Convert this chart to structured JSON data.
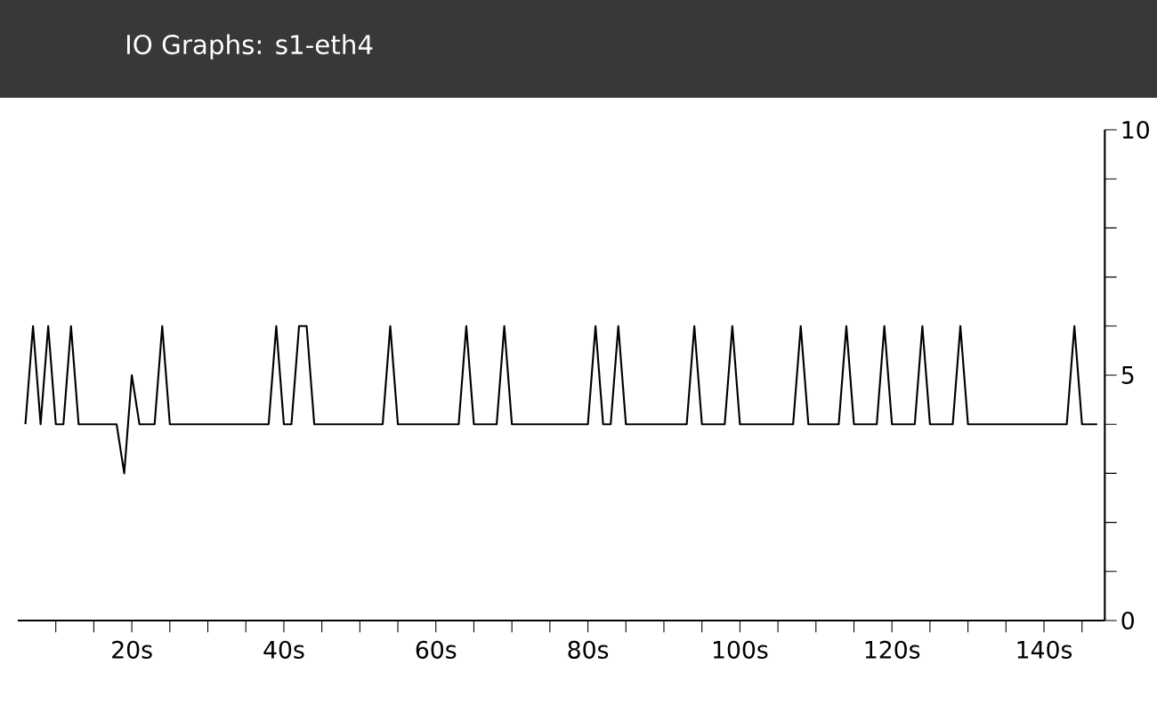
{
  "chart_data": {
    "type": "line",
    "title": "IO Graphs: s1-eth4",
    "color": "#000000",
    "x": [
      6,
      7,
      8,
      9,
      10,
      11,
      12,
      13,
      18,
      19,
      20,
      21,
      23,
      24,
      25,
      38,
      39,
      40,
      41,
      42,
      43,
      44,
      53,
      54,
      55,
      63,
      64,
      65,
      68,
      69,
      70,
      80,
      81,
      82,
      83,
      84,
      85,
      93,
      94,
      95,
      98,
      99,
      100,
      107,
      108,
      109,
      113,
      114,
      115,
      118,
      119,
      120,
      123,
      124,
      125,
      128,
      129,
      130,
      143,
      144,
      145,
      147
    ],
    "values": [
      4,
      6,
      4,
      6,
      4,
      4,
      6,
      4,
      4,
      3,
      5,
      4,
      4,
      6,
      4,
      4,
      6,
      4,
      4,
      6,
      6,
      4,
      4,
      6,
      4,
      4,
      6,
      4,
      4,
      6,
      4,
      4,
      6,
      4,
      4,
      6,
      4,
      4,
      6,
      4,
      4,
      6,
      4,
      4,
      6,
      4,
      4,
      6,
      4,
      4,
      6,
      4,
      4,
      6,
      4,
      4,
      6,
      4,
      4,
      6,
      4,
      4
    ],
    "xlim": [
      5,
      148
    ],
    "ylim": [
      0,
      10
    ],
    "xticks": [
      {
        "value": 10,
        "label": null
      },
      {
        "value": 15,
        "label": null
      },
      {
        "value": 20,
        "label": "20s"
      },
      {
        "value": 25,
        "label": null
      },
      {
        "value": 30,
        "label": null
      },
      {
        "value": 35,
        "label": null
      },
      {
        "value": 40,
        "label": "40s"
      },
      {
        "value": 45,
        "label": null
      },
      {
        "value": 50,
        "label": null
      },
      {
        "value": 55,
        "label": null
      },
      {
        "value": 60,
        "label": "60s"
      },
      {
        "value": 65,
        "label": null
      },
      {
        "value": 70,
        "label": null
      },
      {
        "value": 75,
        "label": null
      },
      {
        "value": 80,
        "label": "80s"
      },
      {
        "value": 85,
        "label": null
      },
      {
        "value": 90,
        "label": null
      },
      {
        "value": 95,
        "label": null
      },
      {
        "value": 100,
        "label": "100s"
      },
      {
        "value": 105,
        "label": null
      },
      {
        "value": 110,
        "label": null
      },
      {
        "value": 115,
        "label": null
      },
      {
        "value": 120,
        "label": "120s"
      },
      {
        "value": 125,
        "label": null
      },
      {
        "value": 130,
        "label": null
      },
      {
        "value": 135,
        "label": null
      },
      {
        "value": 140,
        "label": "140s"
      },
      {
        "value": 145,
        "label": null
      }
    ],
    "yticks": [
      0,
      {
        "value": 1,
        "label": null
      },
      {
        "value": 2,
        "label": null
      },
      {
        "value": 3,
        "label": null
      },
      {
        "value": 4,
        "label": null
      },
      5,
      {
        "value": 6,
        "label": null
      },
      {
        "value": 7,
        "label": null
      },
      {
        "value": 8,
        "label": null
      },
      {
        "value": 9,
        "label": null
      },
      10
    ]
  }
}
